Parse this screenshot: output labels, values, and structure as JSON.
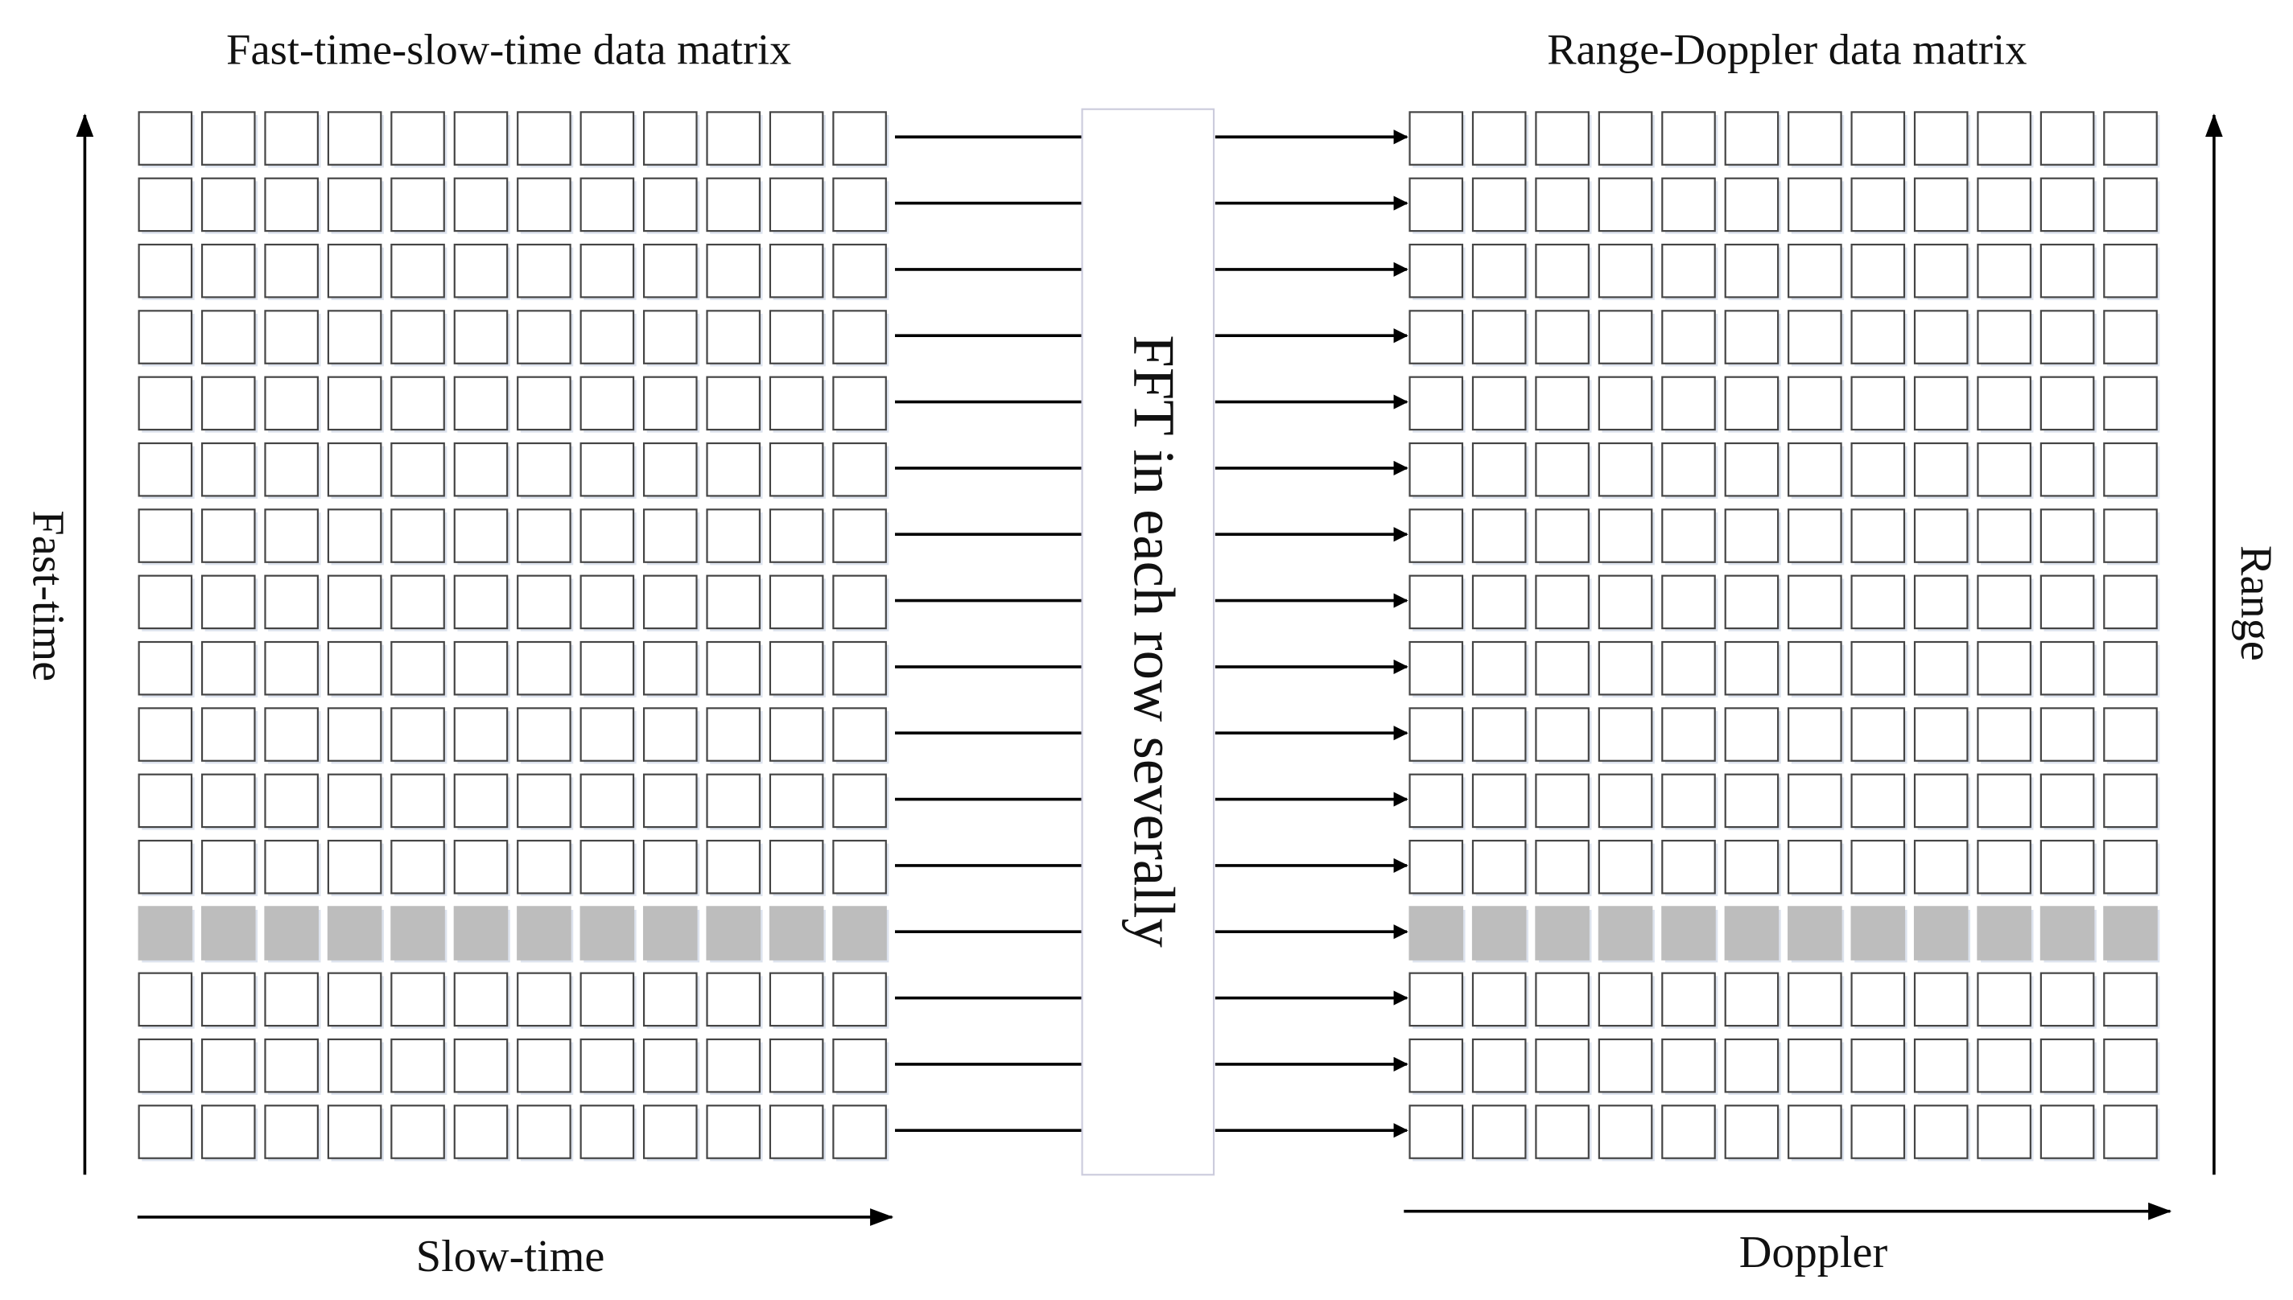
{
  "titles": {
    "left": "Fast-time-slow-time data matrix",
    "right": "Range-Doppler data matrix"
  },
  "axes": {
    "fast_time": "Fast-time",
    "slow_time": "Slow-time",
    "range": "Range",
    "doppler": "Doppler"
  },
  "process": {
    "label": "FFT in each row severally"
  }
}
